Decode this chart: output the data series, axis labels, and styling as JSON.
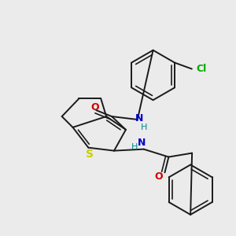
{
  "bg_color": "#ebebeb",
  "bond_color": "#1a1a1a",
  "atom_colors": {
    "N": "#0000cc",
    "O": "#cc0000",
    "S": "#cccc00",
    "Cl": "#00aa00",
    "H": "#008888"
  }
}
